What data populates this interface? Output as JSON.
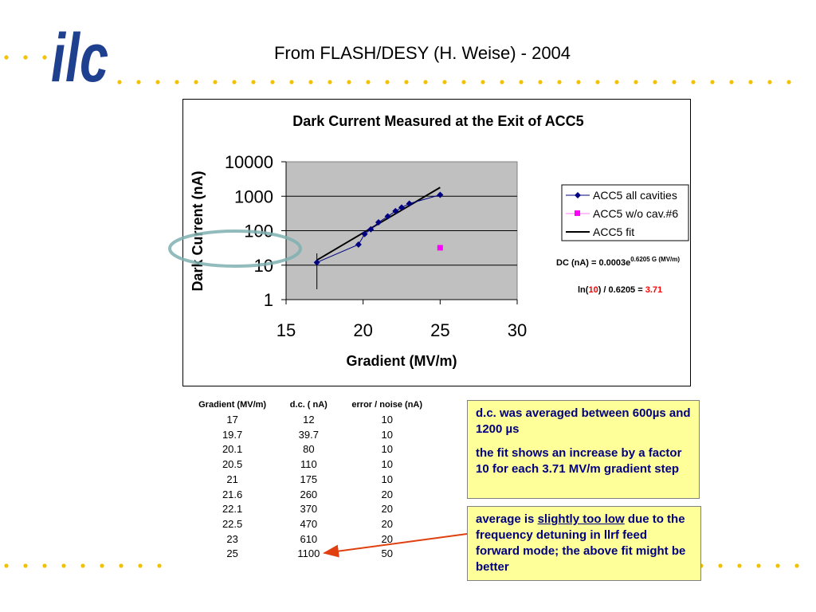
{
  "slide": {
    "title": "From FLASH/DESY (H. Weise) - 2004",
    "logo_text": "ilc"
  },
  "colors": {
    "logo_blue": "#1f3f8f",
    "dot_yellow": "#f2c200",
    "plot_area": "#c0c0c0",
    "series_main": "#000080",
    "series_cav": "#ff00ff",
    "fit_line": "#000000",
    "highlight_red": "#ff0000",
    "note_bg": "#ffff99",
    "note_text": "#000080",
    "arrow": "#e04010",
    "ellipse": "#7fb0b0"
  },
  "chart_data": {
    "type": "scatter",
    "title": "Dark Current Measured at the Exit of ACC5",
    "xlabel": "Gradient (MV/m)",
    "ylabel": "Dark Current (nA)",
    "xlim": [
      15,
      30
    ],
    "ylim": [
      1,
      10000
    ],
    "yscale": "log",
    "xticks": [
      "15",
      "20",
      "25",
      "30"
    ],
    "yticks": [
      "1",
      "10",
      "100",
      "1000",
      "10000"
    ],
    "grid": true,
    "legend_position": "right",
    "series": [
      {
        "name": "ACC5 all cavities",
        "style": "line-marker-diamond",
        "x": [
          17,
          19.7,
          20.1,
          20.5,
          21,
          21.6,
          22.1,
          22.5,
          23,
          25
        ],
        "y": [
          12,
          39.7,
          80,
          110,
          175,
          260,
          370,
          470,
          610,
          1100
        ],
        "error": [
          10,
          10,
          10,
          10,
          10,
          20,
          20,
          20,
          20,
          50
        ]
      },
      {
        "name": "ACC5 w/o cav.#6",
        "style": "marker-square",
        "x": [
          25
        ],
        "y": [
          32
        ]
      },
      {
        "name": "ACC5 fit",
        "style": "line",
        "x": [
          17,
          25
        ],
        "y": [
          14,
          1800
        ]
      }
    ],
    "annotations": {
      "fit_eq_main": "DC (nA) = 0.0003e",
      "fit_eq_exp": "0.6205 G (MV/m)",
      "step_prefix": "ln(",
      "step_ten": "10",
      "step_mid": ") / 0.6205 = ",
      "step_result": "3.71"
    }
  },
  "table": {
    "headers": [
      "Gradient (MV/m)",
      "d.c. ( nA)",
      "error / noise (nA)"
    ],
    "rows": [
      [
        "17",
        "12",
        "10"
      ],
      [
        "19.7",
        "39.7",
        "10"
      ],
      [
        "20.1",
        "80",
        "10"
      ],
      [
        "20.5",
        "110",
        "10"
      ],
      [
        "21",
        "175",
        "10"
      ],
      [
        "21.6",
        "260",
        "20"
      ],
      [
        "22.1",
        "370",
        "20"
      ],
      [
        "22.5",
        "470",
        "20"
      ],
      [
        "23",
        "610",
        "20"
      ],
      [
        "25",
        "1100",
        "50"
      ]
    ]
  },
  "notes": {
    "note1_p1": "d.c. was averaged between 600µs and 1200 µs",
    "note1_p2": "the fit shows an increase by a factor 10 for each 3.71 MV/m gradient step",
    "note2_before": "average is ",
    "note2_underline": "slightly too low",
    "note2_after": " due to the frequency detuning in llrf feed forward mode; the above fit might be better"
  }
}
